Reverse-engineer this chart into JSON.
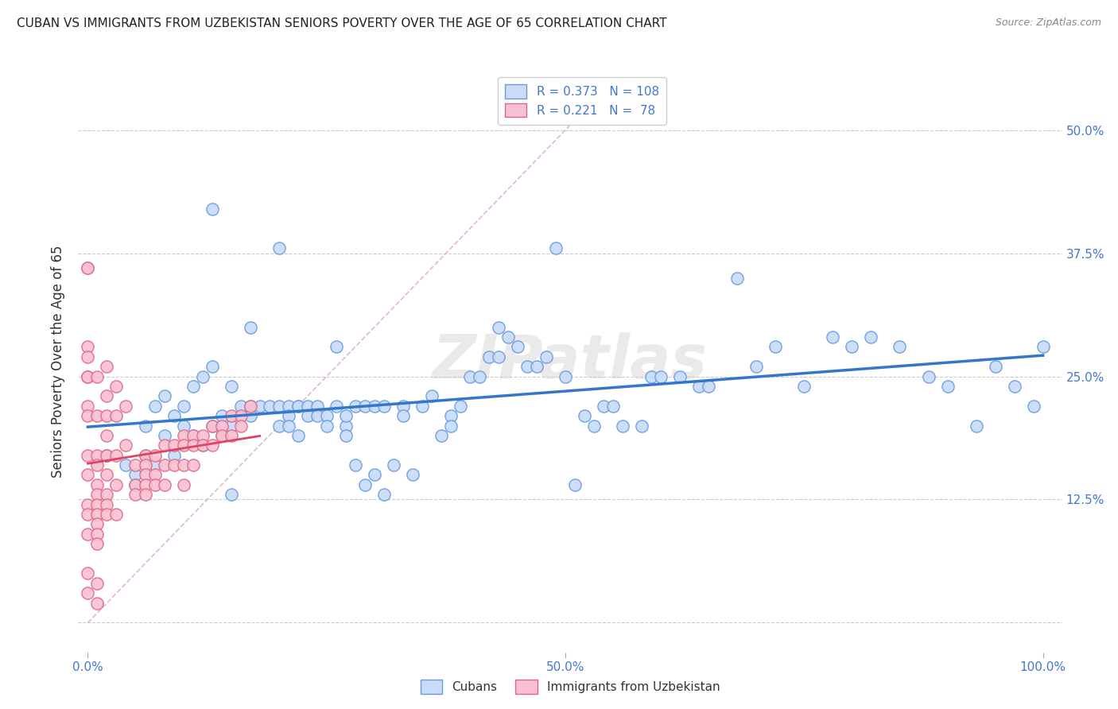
{
  "title": "CUBAN VS IMMIGRANTS FROM UZBEKISTAN SENIORS POVERTY OVER THE AGE OF 65 CORRELATION CHART",
  "source": "Source: ZipAtlas.com",
  "ylabel": "Seniors Poverty Over the Age of 65",
  "xlim": [
    -0.01,
    1.02
  ],
  "ylim": [
    -0.03,
    0.56
  ],
  "x_tick_positions": [
    0.0,
    0.5,
    1.0
  ],
  "x_tick_labels": [
    "0.0%",
    "50.0%",
    "100.0%"
  ],
  "y_tick_positions": [
    0.0,
    0.125,
    0.25,
    0.375,
    0.5
  ],
  "y_tick_labels_right": [
    "",
    "12.5%",
    "25.0%",
    "37.5%",
    "50.0%"
  ],
  "cubans_R": 0.373,
  "cubans_N": 108,
  "uzbekistan_R": 0.221,
  "uzbekistan_N": 78,
  "color_cubans_face": "#c8dcf8",
  "color_cubans_edge": "#6699dd",
  "color_uzbekistan_face": "#f8c0d0",
  "color_uzbekistan_edge": "#dd6688",
  "color_cubans_line": "#3377cc",
  "color_uzbekistan_line": "#dd4466",
  "color_identity_line": "#ddaaaa",
  "watermark": "ZIPatlas",
  "legend_label_1": "R = 0.373   N = 108",
  "legend_label_2": "R = 0.221   N =  78",
  "cubans_x": [
    0.02,
    0.04,
    0.05,
    0.05,
    0.06,
    0.06,
    0.07,
    0.07,
    0.08,
    0.08,
    0.09,
    0.09,
    0.1,
    0.1,
    0.11,
    0.11,
    0.12,
    0.12,
    0.13,
    0.13,
    0.14,
    0.14,
    0.15,
    0.15,
    0.16,
    0.17,
    0.17,
    0.17,
    0.18,
    0.19,
    0.2,
    0.2,
    0.21,
    0.21,
    0.21,
    0.22,
    0.22,
    0.22,
    0.23,
    0.23,
    0.24,
    0.24,
    0.25,
    0.25,
    0.26,
    0.26,
    0.27,
    0.27,
    0.27,
    0.28,
    0.28,
    0.29,
    0.29,
    0.3,
    0.3,
    0.31,
    0.31,
    0.32,
    0.33,
    0.33,
    0.34,
    0.35,
    0.36,
    0.37,
    0.38,
    0.38,
    0.39,
    0.4,
    0.41,
    0.42,
    0.43,
    0.43,
    0.44,
    0.45,
    0.46,
    0.47,
    0.48,
    0.49,
    0.5,
    0.51,
    0.52,
    0.53,
    0.54,
    0.55,
    0.56,
    0.58,
    0.59,
    0.6,
    0.62,
    0.64,
    0.65,
    0.68,
    0.7,
    0.72,
    0.75,
    0.78,
    0.8,
    0.82,
    0.85,
    0.88,
    0.9,
    0.93,
    0.95,
    0.97,
    0.99,
    1.0,
    0.2,
    0.13,
    0.15
  ],
  "cubans_y": [
    0.17,
    0.16,
    0.15,
    0.14,
    0.2,
    0.17,
    0.22,
    0.16,
    0.23,
    0.19,
    0.21,
    0.17,
    0.22,
    0.2,
    0.24,
    0.19,
    0.25,
    0.18,
    0.42,
    0.2,
    0.21,
    0.19,
    0.24,
    0.2,
    0.22,
    0.22,
    0.21,
    0.3,
    0.22,
    0.22,
    0.22,
    0.2,
    0.22,
    0.21,
    0.2,
    0.22,
    0.22,
    0.19,
    0.22,
    0.21,
    0.22,
    0.21,
    0.21,
    0.2,
    0.28,
    0.22,
    0.2,
    0.21,
    0.19,
    0.16,
    0.22,
    0.14,
    0.22,
    0.15,
    0.22,
    0.13,
    0.22,
    0.16,
    0.22,
    0.21,
    0.15,
    0.22,
    0.23,
    0.19,
    0.21,
    0.2,
    0.22,
    0.25,
    0.25,
    0.27,
    0.3,
    0.27,
    0.29,
    0.28,
    0.26,
    0.26,
    0.27,
    0.38,
    0.25,
    0.14,
    0.21,
    0.2,
    0.22,
    0.22,
    0.2,
    0.2,
    0.25,
    0.25,
    0.25,
    0.24,
    0.24,
    0.35,
    0.26,
    0.28,
    0.24,
    0.29,
    0.28,
    0.29,
    0.28,
    0.25,
    0.24,
    0.2,
    0.26,
    0.24,
    0.22,
    0.28,
    0.38,
    0.26,
    0.13
  ],
  "uzbekistan_x": [
    0.0,
    0.0,
    0.0,
    0.0,
    0.0,
    0.0,
    0.0,
    0.0,
    0.0,
    0.0,
    0.0,
    0.0,
    0.0,
    0.0,
    0.0,
    0.01,
    0.01,
    0.01,
    0.01,
    0.01,
    0.01,
    0.01,
    0.01,
    0.01,
    0.01,
    0.01,
    0.01,
    0.01,
    0.02,
    0.02,
    0.02,
    0.02,
    0.02,
    0.02,
    0.02,
    0.02,
    0.02,
    0.03,
    0.03,
    0.03,
    0.03,
    0.03,
    0.04,
    0.04,
    0.05,
    0.05,
    0.05,
    0.06,
    0.06,
    0.06,
    0.06,
    0.06,
    0.07,
    0.07,
    0.07,
    0.08,
    0.08,
    0.08,
    0.09,
    0.09,
    0.1,
    0.1,
    0.1,
    0.1,
    0.11,
    0.11,
    0.11,
    0.12,
    0.12,
    0.13,
    0.13,
    0.14,
    0.14,
    0.15,
    0.15,
    0.16,
    0.16,
    0.17
  ],
  "uzbekistan_y": [
    0.36,
    0.36,
    0.28,
    0.27,
    0.25,
    0.25,
    0.22,
    0.21,
    0.17,
    0.15,
    0.12,
    0.11,
    0.09,
    0.05,
    0.03,
    0.25,
    0.21,
    0.17,
    0.16,
    0.14,
    0.13,
    0.12,
    0.11,
    0.1,
    0.09,
    0.08,
    0.04,
    0.02,
    0.26,
    0.23,
    0.21,
    0.19,
    0.17,
    0.15,
    0.13,
    0.12,
    0.11,
    0.24,
    0.21,
    0.17,
    0.14,
    0.11,
    0.22,
    0.18,
    0.16,
    0.14,
    0.13,
    0.17,
    0.16,
    0.15,
    0.14,
    0.13,
    0.17,
    0.15,
    0.14,
    0.18,
    0.16,
    0.14,
    0.18,
    0.16,
    0.19,
    0.18,
    0.16,
    0.14,
    0.19,
    0.18,
    0.16,
    0.19,
    0.18,
    0.2,
    0.18,
    0.2,
    0.19,
    0.21,
    0.19,
    0.21,
    0.2,
    0.22
  ]
}
